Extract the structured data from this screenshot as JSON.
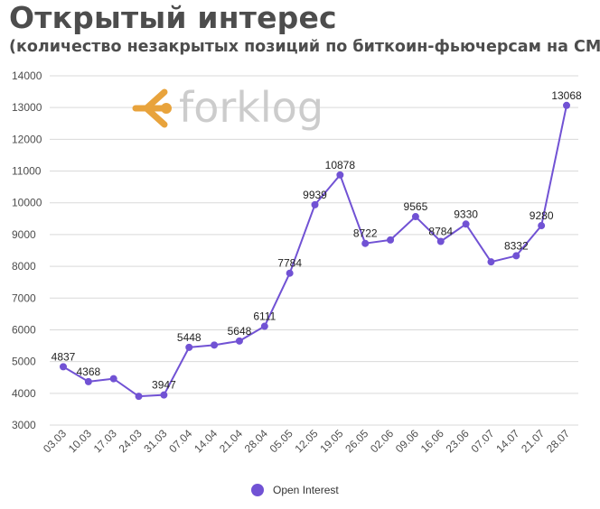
{
  "title": "Открытый интерес",
  "subtitle": "(количество незакрытых позиций по биткоин-фьючерсам на CME)",
  "logo": {
    "text": "forklog",
    "icon": "forklog-arrow-icon",
    "accent_color": "#e8a33c",
    "text_color": "#cccccc"
  },
  "colors": {
    "series": "#7152d4",
    "grid": "#d9d9d9",
    "axis_text": "#4d4d4d"
  },
  "chart_data": {
    "type": "line",
    "title": "Открытый интерес",
    "subtitle": "(количество незакрытых позиций по биткоин-фьючерсам на CME)",
    "xlabel": "",
    "ylabel": "",
    "ylim": [
      3000,
      14000
    ],
    "yticks": [
      "14000",
      "13000",
      "12000",
      "11000",
      "10000",
      "9000",
      "8000",
      "7000",
      "6000",
      "5000",
      "4000",
      "3000"
    ],
    "grid": true,
    "legend_position": "bottom-center",
    "categories": [
      "03.03",
      "10.03",
      "17.03",
      "24.03",
      "31.03",
      "07.04",
      "14.04",
      "21.04",
      "28.04",
      "05.05",
      "12.05",
      "19.05",
      "26.05",
      "02.06",
      "09.06",
      "16.06",
      "23.06",
      "07.07",
      "14.07",
      "21.07",
      "28.07"
    ],
    "series": [
      {
        "name": "Open Interest",
        "values": [
          4837,
          4368,
          4460,
          3905,
          3947,
          5448,
          5520,
          5648,
          6111,
          7784,
          9939,
          10878,
          8722,
          8830,
          9565,
          8784,
          9330,
          8140,
          8332,
          9280,
          13068
        ],
        "labels": [
          "4837",
          "4368",
          "",
          "",
          "3947",
          "5448",
          "",
          "5648",
          "6111",
          "7784",
          "9939",
          "10878",
          "8722",
          "",
          "9565",
          "8784",
          "9330",
          "",
          "8332",
          "9280",
          "13068"
        ]
      }
    ]
  }
}
